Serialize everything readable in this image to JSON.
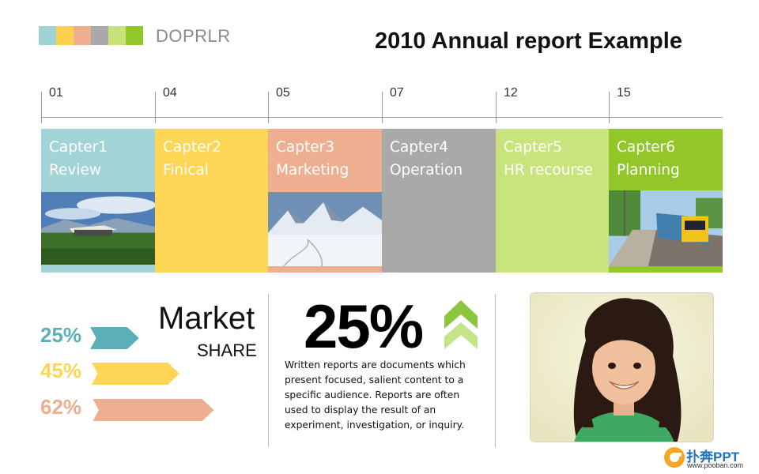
{
  "header": {
    "brand": "DOPRLR",
    "title": "2010 Annual report Example",
    "swatch_colors": [
      "#9fd2d6",
      "#fdd04e",
      "#eeae8f",
      "#a9a9a9",
      "#c8e27a",
      "#93c629"
    ]
  },
  "timeline": {
    "ticks": [
      "01",
      "04",
      "05",
      "07",
      "12",
      "15"
    ],
    "chapters": [
      {
        "line1": "Capter1",
        "line2": "Review",
        "color": "#a2d3d7",
        "image": "landscape-with-building"
      },
      {
        "line1": "Capter2",
        "line2": "Finical",
        "color": "#fdd655",
        "image": ""
      },
      {
        "line1": "Capter3",
        "line2": "Marketing",
        "color": "#eeae90",
        "image": "snowy-mountains"
      },
      {
        "line1": "Capter4",
        "line2": "Operation",
        "color": "#a9a9a9",
        "image": ""
      },
      {
        "line1": "Capter5",
        "line2": "HR recourse",
        "color": "#c9e47c",
        "image": ""
      },
      {
        "line1": "Capter6",
        "line2": "Planning",
        "color": "#93c629",
        "image": "train-station"
      }
    ]
  },
  "market": {
    "title": "Market",
    "subtitle": "SHARE",
    "bars": [
      {
        "label": "25%",
        "value": 25,
        "color": "#5bb0b8"
      },
      {
        "label": "45%",
        "value": 45,
        "color": "#fdd655"
      },
      {
        "label": "62%",
        "value": 62,
        "color": "#eeae90"
      }
    ]
  },
  "stat": {
    "value": "25%",
    "chevron_color": "#8cc63f",
    "text": "Written reports are documents which present focused, salient content to a specific audience. Reports are often used to display the result of an experiment, investigation, or inquiry."
  },
  "photo": {
    "subject": "smiling-girl-photo"
  },
  "footer": {
    "logo_text": "扑奔PPT",
    "logo_url": "www.pooban.com",
    "logo_color": "#f5a623"
  }
}
